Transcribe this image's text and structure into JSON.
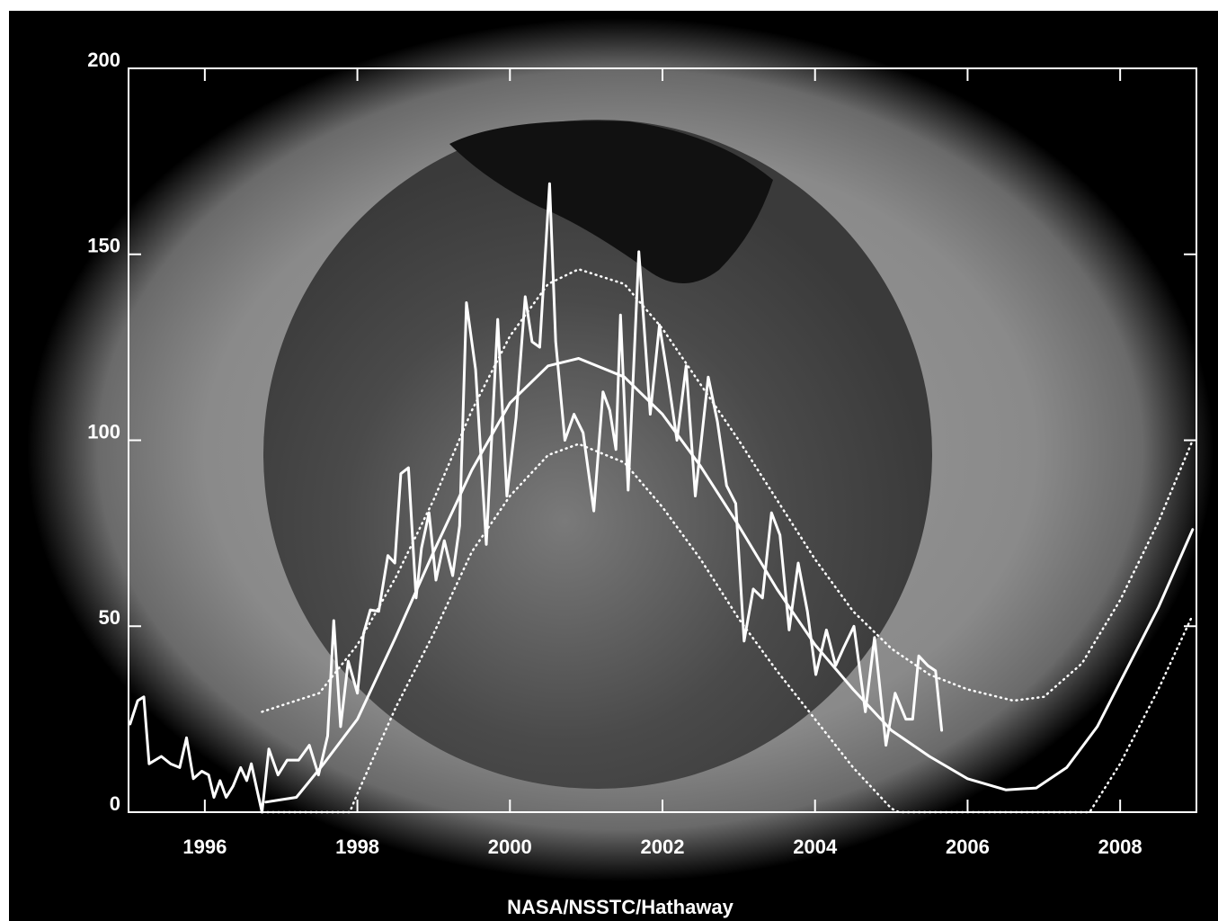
{
  "chart_data": {
    "type": "line",
    "credit": "NASA/NSSTC/Hathaway",
    "xlim": [
      1995,
      2009
    ],
    "xticks": [
      1996,
      1998,
      2000,
      2002,
      2004,
      2006,
      2008
    ],
    "ylim": [
      0,
      200
    ],
    "yticks": [
      0,
      50,
      100,
      150,
      200
    ],
    "series": [
      {
        "color": "#ffffff",
        "style": "solid",
        "width": 3,
        "x": [
          1995.02,
          1995.12,
          1995.2,
          1995.27,
          1995.43,
          1995.55,
          1995.67,
          1995.76,
          1995.85,
          1995.96,
          1996.05,
          1996.12,
          1996.2,
          1996.28,
          1996.37,
          1996.47,
          1996.55,
          1996.61,
          1996.69,
          1996.75,
          1996.84,
          1996.96,
          1997.08,
          1997.23,
          1997.37,
          1997.49,
          1997.61,
          1997.69,
          1997.78,
          1997.88,
          1998.0,
          1998.08,
          1998.17,
          1998.28,
          1998.4,
          1998.49,
          1998.57,
          1998.67,
          1998.77,
          1998.84,
          1998.94,
          1999.03,
          1999.14,
          1999.25,
          1999.34,
          1999.43,
          1999.55,
          1999.69,
          1999.84,
          1999.96,
          2000.08,
          2000.2,
          2000.29,
          2000.39,
          2000.52,
          2000.6,
          2000.72,
          2000.84,
          2000.96,
          2001.1,
          2001.22,
          2001.31,
          2001.39,
          2001.45,
          2001.55,
          2001.69,
          2001.84,
          2001.96,
          2002.08,
          2002.19,
          2002.31,
          2002.43,
          2002.6,
          2002.72,
          2002.84,
          2002.96,
          2003.07,
          2003.19,
          2003.31,
          2003.43,
          2003.54,
          2003.66,
          2003.78,
          2003.9,
          2004.01,
          2004.15,
          2004.27,
          2004.37,
          2004.51,
          2004.66,
          2004.78,
          2004.93,
          2005.05,
          2005.19,
          2005.28,
          2005.36,
          2005.48,
          2005.58,
          2005.66
        ],
        "values": [
          23.7,
          30,
          31,
          13,
          15,
          13,
          12,
          20,
          9,
          11,
          10,
          4,
          8.5,
          4,
          7,
          12,
          8.5,
          13,
          5.5,
          0,
          17,
          10,
          14,
          14,
          18,
          10,
          20.5,
          51.5,
          23,
          40.6,
          32,
          48,
          54.4,
          54,
          69,
          67,
          91,
          92.6,
          57.6,
          71,
          80.5,
          62.4,
          73,
          63.6,
          77,
          137,
          119,
          72,
          132.5,
          85,
          106,
          138.6,
          126.5,
          125,
          169,
          126.5,
          100,
          107,
          102,
          81,
          113,
          108,
          97.5,
          133.7,
          86.6,
          150.7,
          107,
          131,
          115.6,
          100,
          120,
          85,
          117,
          105,
          87.8,
          83,
          46,
          60,
          57.6,
          80.5,
          74.5,
          49,
          67,
          54,
          37,
          49,
          39.4,
          44,
          50,
          27,
          47,
          18,
          32,
          25,
          25,
          42,
          39.4,
          38,
          22
        ]
      },
      {
        "color": "#ffffff",
        "style": "solid",
        "width": 3,
        "x": [
          1996.8,
          1997.2,
          1997.55,
          1998.0,
          1998.5,
          1999.0,
          1999.5,
          2000.0,
          2000.5,
          2000.9,
          2001.5,
          2002.0,
          2002.5,
          2003.0,
          2003.5,
          2004.0,
          2004.5,
          2005.0,
          2005.5,
          2006.0,
          2006.5,
          2006.9,
          2007.3,
          2007.7,
          2008.0,
          2008.5,
          2008.95
        ],
        "values": [
          2.7,
          4,
          12.8,
          25,
          47,
          70,
          92,
          110,
          120,
          122,
          117,
          107,
          93,
          77,
          60,
          45,
          33,
          22,
          15,
          9,
          6,
          6.5,
          12,
          23,
          35,
          55,
          76
        ]
      },
      {
        "color": "#ffffff",
        "style": "dotted",
        "width": 2.5,
        "x": [
          1996.75,
          1997.5,
          1998.0,
          1998.5,
          1999.0,
          1999.5,
          2000.0,
          2000.5,
          2000.9,
          2001.5,
          2002.0,
          2002.5,
          2003.0,
          2003.5,
          2004.0,
          2004.5,
          2005.0,
          2005.5,
          2006.0,
          2006.6,
          2007.0,
          2007.5,
          2008.0,
          2008.5,
          2008.95
        ],
        "values": [
          27,
          32,
          45,
          63,
          84,
          108,
          128,
          142,
          146,
          142,
          130,
          115,
          100,
          84,
          68,
          54,
          44,
          37,
          33,
          30,
          31,
          40,
          57,
          78,
          100
        ]
      },
      {
        "color": "#ffffff",
        "style": "dotted",
        "width": 2.5,
        "x": [
          1996.75,
          1997.9,
          1998.0,
          1998.5,
          1999.0,
          1999.5,
          2000.0,
          2000.5,
          2000.9,
          2001.5,
          2002.0,
          2002.5,
          2003.0,
          2003.5,
          2004.0,
          2004.5,
          2005.0,
          2005.1,
          2007.6,
          2008.0,
          2008.5,
          2008.95
        ],
        "values": [
          0,
          0,
          5,
          28,
          48,
          70,
          85,
          96,
          99,
          94,
          82,
          68,
          52,
          38,
          25,
          12,
          1,
          0,
          0,
          13,
          33,
          53
        ]
      }
    ]
  }
}
